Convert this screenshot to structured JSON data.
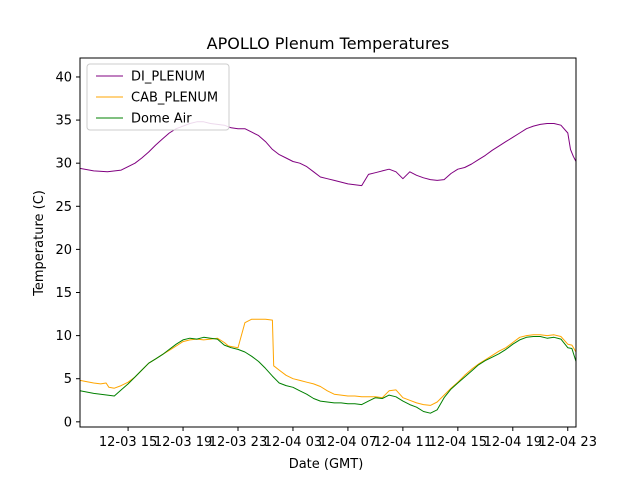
{
  "chart_data": {
    "type": "line",
    "title": "APOLLO Plenum Temperatures",
    "xlabel": "Date (GMT)",
    "ylabel": "Temperature (C)",
    "xlim": [
      11.5,
      47.6
    ],
    "ylim": [
      -0.6,
      42.2
    ],
    "yticks": [
      0,
      5,
      10,
      15,
      20,
      25,
      30,
      35,
      40
    ],
    "xticks": [
      {
        "t": 15,
        "label": "12-03 15"
      },
      {
        "t": 19,
        "label": "12-03 19"
      },
      {
        "t": 23,
        "label": "12-03 23"
      },
      {
        "t": 27,
        "label": "12-04 03"
      },
      {
        "t": 31,
        "label": "12-04 07"
      },
      {
        "t": 35,
        "label": "12-04 11"
      },
      {
        "t": 39,
        "label": "12-04 15"
      },
      {
        "t": 43,
        "label": "12-04 19"
      },
      {
        "t": 47,
        "label": "12-04 23"
      }
    ],
    "x_units": "hours since 2000-12-03 00:00 GMT",
    "legend_position": "upper-left",
    "series": [
      {
        "name": "DI_PLENUM",
        "color": "#800080",
        "x": [
          11.5,
          12.5,
          13.5,
          14.5,
          15.5,
          16.0,
          16.5,
          17.0,
          17.5,
          18.0,
          18.5,
          19.0,
          19.5,
          20.0,
          20.5,
          21.0,
          21.5,
          22.0,
          22.5,
          23.0,
          23.5,
          24.0,
          24.5,
          25.0,
          25.5,
          26.0,
          26.5,
          27.0,
          27.5,
          28.0,
          28.5,
          29.0,
          29.5,
          30.0,
          30.5,
          31.0,
          31.5,
          32.0,
          32.5,
          33.0,
          33.5,
          34.0,
          34.5,
          35.0,
          35.5,
          36.0,
          36.5,
          37.0,
          37.5,
          38.0,
          38.5,
          39.0,
          39.5,
          40.0,
          40.5,
          41.0,
          41.5,
          42.0,
          42.5,
          43.0,
          43.5,
          44.0,
          44.5,
          45.0,
          45.5,
          46.0,
          46.5,
          47.0,
          47.2,
          47.4,
          47.6
        ],
        "values": [
          29.4,
          29.1,
          29.0,
          29.2,
          30.0,
          30.6,
          31.3,
          32.1,
          32.8,
          33.5,
          34.0,
          34.3,
          34.6,
          34.8,
          34.8,
          34.6,
          34.5,
          34.4,
          34.1,
          34.0,
          34.0,
          33.6,
          33.2,
          32.5,
          31.6,
          31.0,
          30.6,
          30.2,
          30.0,
          29.6,
          29.0,
          28.4,
          28.2,
          28.0,
          27.8,
          27.6,
          27.5,
          27.4,
          28.7,
          28.9,
          29.1,
          29.3,
          29.0,
          28.2,
          29.0,
          28.6,
          28.3,
          28.1,
          28.0,
          28.1,
          28.8,
          29.3,
          29.5,
          29.9,
          30.4,
          30.9,
          31.5,
          32.0,
          32.5,
          33.0,
          33.5,
          34.0,
          34.3,
          34.5,
          34.6,
          34.6,
          34.4,
          33.5,
          31.6,
          30.8,
          30.2
        ]
      },
      {
        "name": "CAB_PLENUM",
        "color": "#ffa500",
        "x": [
          11.5,
          12.5,
          13.0,
          13.4,
          13.6,
          14.0,
          14.5,
          15.0,
          15.5,
          16.0,
          16.5,
          17.0,
          17.5,
          18.0,
          18.5,
          19.0,
          19.5,
          20.0,
          20.5,
          21.0,
          21.5,
          22.0,
          22.3,
          22.6,
          23.0,
          23.5,
          24.0,
          24.5,
          25.0,
          25.5,
          25.6,
          26.0,
          26.5,
          27.0,
          27.5,
          28.0,
          28.5,
          29.0,
          29.5,
          30.0,
          30.5,
          31.0,
          31.5,
          32.0,
          32.5,
          33.0,
          33.5,
          34.0,
          34.5,
          35.0,
          35.5,
          36.0,
          36.5,
          37.0,
          37.5,
          38.0,
          38.5,
          39.0,
          39.5,
          40.0,
          40.5,
          41.0,
          41.5,
          42.0,
          42.5,
          43.0,
          43.5,
          44.0,
          44.5,
          45.0,
          45.5,
          46.0,
          46.5,
          47.0,
          47.3,
          47.6
        ],
        "values": [
          4.8,
          4.5,
          4.4,
          4.5,
          4.0,
          3.9,
          4.2,
          4.6,
          5.2,
          6.0,
          6.8,
          7.3,
          7.8,
          8.3,
          8.8,
          9.3,
          9.5,
          9.6,
          9.5,
          9.6,
          9.7,
          9.2,
          8.8,
          8.7,
          8.6,
          11.5,
          11.9,
          11.9,
          11.9,
          11.8,
          6.5,
          6.0,
          5.4,
          5.0,
          4.8,
          4.6,
          4.4,
          4.1,
          3.6,
          3.2,
          3.1,
          3.0,
          3.0,
          2.9,
          2.9,
          2.9,
          2.8,
          3.6,
          3.7,
          2.8,
          2.5,
          2.2,
          2.0,
          1.9,
          2.3,
          3.1,
          3.9,
          4.6,
          5.4,
          6.1,
          6.7,
          7.2,
          7.7,
          8.2,
          8.6,
          9.2,
          9.8,
          10.0,
          10.1,
          10.1,
          10.0,
          10.1,
          9.9,
          9.0,
          8.9,
          8.1
        ]
      },
      {
        "name": "Dome Air",
        "color": "#008000",
        "x": [
          11.5,
          12.5,
          13.0,
          13.5,
          14.0,
          14.5,
          15.0,
          15.5,
          16.0,
          16.5,
          17.0,
          17.5,
          18.0,
          18.5,
          19.0,
          19.5,
          20.0,
          20.5,
          21.0,
          21.5,
          22.0,
          22.5,
          23.0,
          23.5,
          24.0,
          24.5,
          25.0,
          25.5,
          26.0,
          26.5,
          27.0,
          27.5,
          28.0,
          28.5,
          29.0,
          29.5,
          30.0,
          30.5,
          31.0,
          31.5,
          32.0,
          32.5,
          33.0,
          33.5,
          34.0,
          34.5,
          35.0,
          35.5,
          36.0,
          36.5,
          37.0,
          37.5,
          38.0,
          38.5,
          39.0,
          39.5,
          40.0,
          40.5,
          41.0,
          41.5,
          42.0,
          42.5,
          43.0,
          43.5,
          44.0,
          44.5,
          45.0,
          45.5,
          46.0,
          46.5,
          47.0,
          47.3,
          47.6
        ],
        "values": [
          3.6,
          3.3,
          3.2,
          3.1,
          3.0,
          3.7,
          4.4,
          5.2,
          6.0,
          6.8,
          7.3,
          7.8,
          8.4,
          9.0,
          9.5,
          9.7,
          9.6,
          9.8,
          9.7,
          9.6,
          8.9,
          8.6,
          8.4,
          8.1,
          7.6,
          7.0,
          6.2,
          5.3,
          4.5,
          4.2,
          4.0,
          3.6,
          3.2,
          2.7,
          2.4,
          2.3,
          2.2,
          2.2,
          2.1,
          2.1,
          2.0,
          2.4,
          2.8,
          2.7,
          3.1,
          2.9,
          2.4,
          2.0,
          1.7,
          1.2,
          1.0,
          1.4,
          2.8,
          3.8,
          4.5,
          5.2,
          5.9,
          6.6,
          7.1,
          7.5,
          7.9,
          8.4,
          9.0,
          9.5,
          9.8,
          9.9,
          9.9,
          9.7,
          9.8,
          9.6,
          8.6,
          8.5,
          7.0
        ]
      }
    ]
  }
}
